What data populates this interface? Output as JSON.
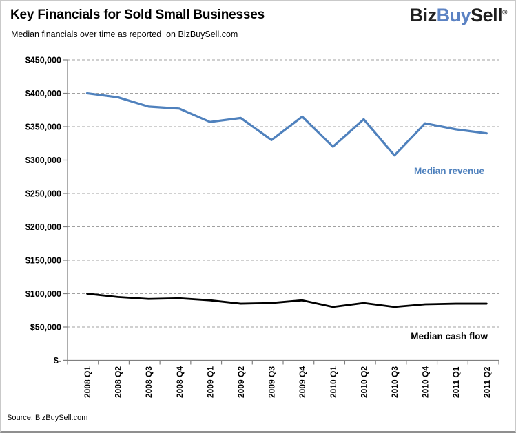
{
  "header": {
    "title": "Key Financials for Sold Small Businesses",
    "subtitle": "Median financials over time as reported  on BizBuySell.com",
    "logo": {
      "biz": "Biz",
      "buy": "Buy",
      "sell": "Sell",
      "registered": "®"
    }
  },
  "footer": {
    "source": "Source: BizBuySell.com"
  },
  "colors": {
    "revenue_blue": "#4F81BD",
    "cashflow_black": "#000000",
    "logo_dark": "#1F1F1F",
    "logo_blue": "#5B82C3",
    "gridline_gray": "#A0A0A0",
    "axis_gray": "#808080",
    "text_black": "#000000"
  },
  "chart_data": {
    "type": "line",
    "title": "Key Financials for Sold Small Businesses",
    "subtitle": "Median financials over time as reported on BizBuySell.com",
    "categories": [
      "2008 Q1",
      "2008 Q2",
      "2008 Q3",
      "2008 Q4",
      "2009 Q1",
      "2009 Q2",
      "2009 Q3",
      "2009 Q4",
      "2010 Q1",
      "2010 Q2",
      "2010 Q3",
      "2010 Q4",
      "2011 Q1",
      "2011 Q2"
    ],
    "series": [
      {
        "name": "Median revenue",
        "color": "#4F81BD",
        "stroke_width": 3.2,
        "values": [
          400000,
          394000,
          380000,
          377000,
          357000,
          363000,
          330000,
          365000,
          320000,
          361000,
          307000,
          355000,
          346000,
          340000
        ]
      },
      {
        "name": "Median cash flow",
        "color": "#000000",
        "stroke_width": 2.8,
        "values": [
          100000,
          95000,
          92000,
          93000,
          90000,
          85000,
          86000,
          90000,
          80000,
          86000,
          80000,
          84000,
          85000,
          85000
        ]
      }
    ],
    "xlabel": "",
    "ylabel": "",
    "ylim": [
      0,
      450000
    ],
    "ytick_step": 50000,
    "ytick_labels": [
      "$-",
      "$50,000",
      "$100,000",
      "$150,000",
      "$200,000",
      "$250,000",
      "$300,000",
      "$350,000",
      "$400,000",
      "$450,000"
    ],
    "grid": "horizontal dashed",
    "legend": "inline labels next to lines",
    "source": "Source: BizBuySell.com"
  }
}
